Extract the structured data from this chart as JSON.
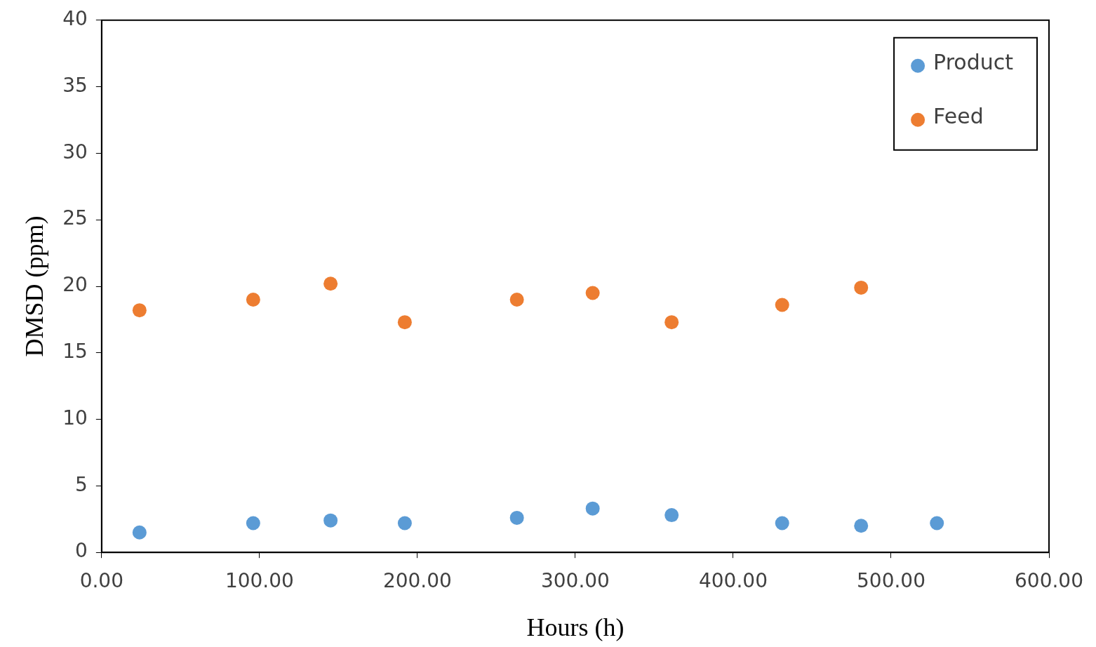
{
  "chart_data": {
    "type": "scatter",
    "xlabel": "Hours (h)",
    "ylabel": "DMSD (ppm)",
    "xlim": [
      0,
      600
    ],
    "xticks": [
      {
        "value": 0,
        "label": "0.00"
      },
      {
        "value": 100,
        "label": "100.00"
      },
      {
        "value": 200,
        "label": "200.00"
      },
      {
        "value": 300,
        "label": "300.00"
      },
      {
        "value": 400,
        "label": "400.00"
      },
      {
        "value": 500,
        "label": "500.00"
      },
      {
        "value": 600,
        "label": "600.00"
      }
    ],
    "ylim": [
      0,
      40
    ],
    "yticks": [
      0,
      5,
      10,
      15,
      20,
      25,
      30,
      35,
      40
    ],
    "grid": false,
    "legend": "top right",
    "marker": "circle",
    "series": [
      {
        "name": "Product",
        "color": "#5b9bd5",
        "x": [
          24,
          96,
          145,
          192,
          263,
          311,
          361,
          431,
          481,
          529
        ],
        "values": [
          1.5,
          2.2,
          2.4,
          2.2,
          2.6,
          3.3,
          2.8,
          2.2,
          2.0,
          2.2
        ]
      },
      {
        "name": "Feed",
        "color": "#ed7d31",
        "x": [
          24,
          96,
          145,
          192,
          263,
          311,
          361,
          431,
          481
        ],
        "values": [
          18.2,
          19.0,
          20.2,
          17.3,
          19.0,
          19.5,
          17.3,
          18.6,
          19.9
        ]
      }
    ]
  }
}
